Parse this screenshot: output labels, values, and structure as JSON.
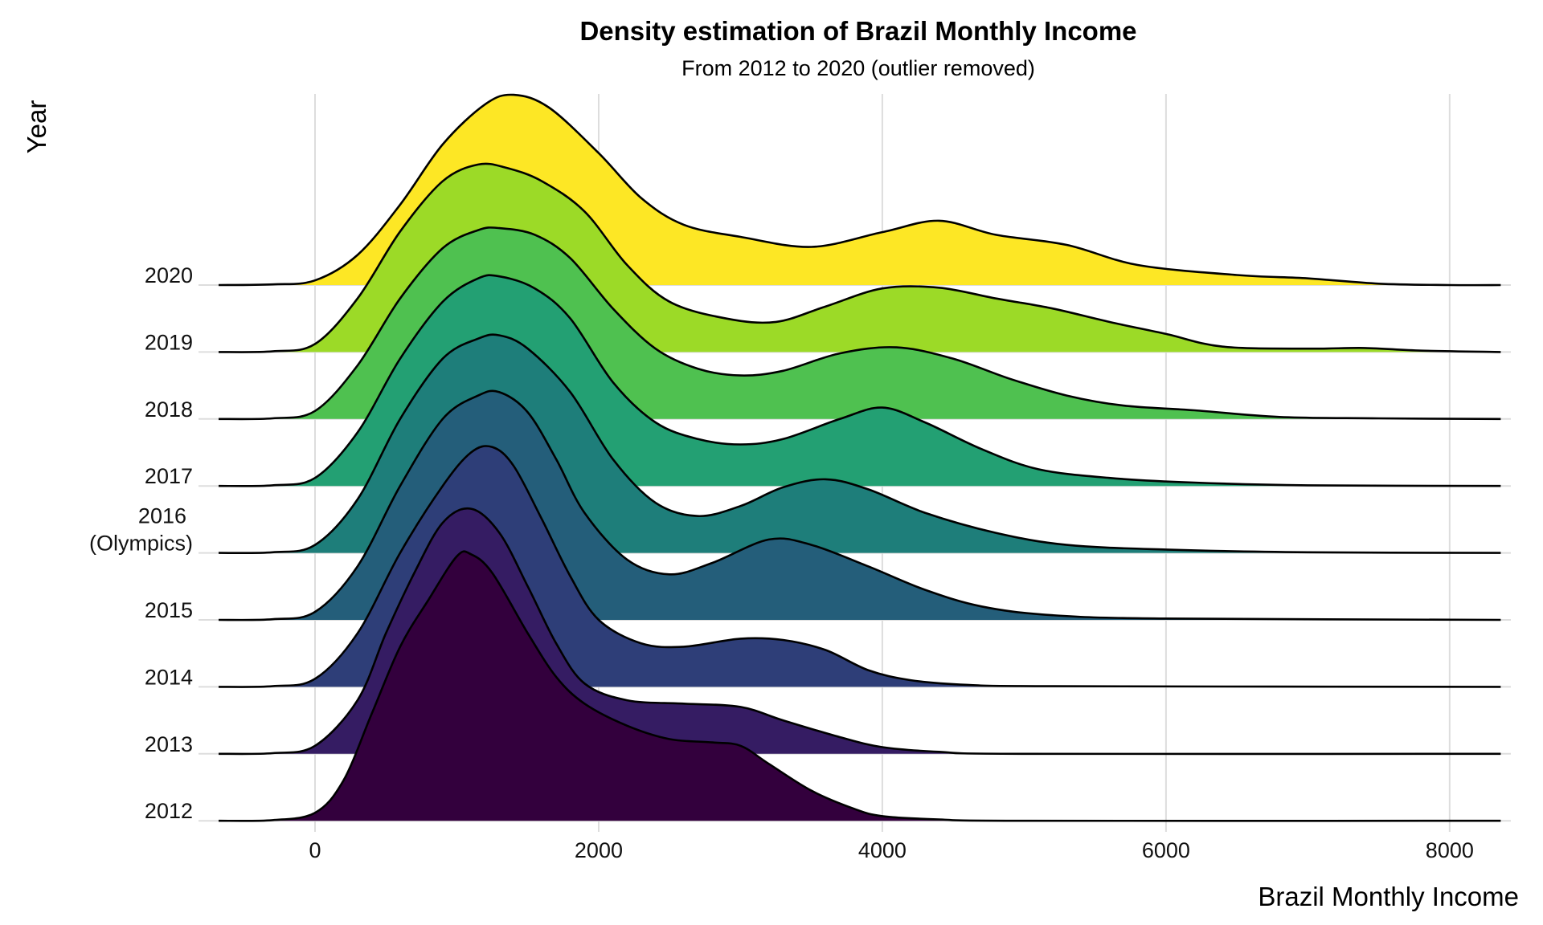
{
  "chart_data": {
    "type": "ridgeline",
    "title": "Density estimation of Brazil Monthly Income",
    "subtitle": "From 2012 to 2020 (outlier removed)",
    "xlabel": "Brazil Monthly Income",
    "ylabel": "Year",
    "xlim": [
      -680,
      8360
    ],
    "x_ticks": [
      0,
      2000,
      4000,
      6000,
      8000
    ],
    "x_tick_labels": [
      "0",
      "2000",
      "4000",
      "6000",
      "8000"
    ],
    "grid": true,
    "density_units": "relative height, 1 = spacing between adjacent year baselines",
    "series": [
      {
        "name": "2012",
        "label": "2012",
        "color": "#33003D",
        "points": [
          [
            -680,
            0
          ],
          [
            -300,
            0.01
          ],
          [
            0,
            0.12
          ],
          [
            200,
            0.6
          ],
          [
            400,
            1.6
          ],
          [
            600,
            2.6
          ],
          [
            800,
            3.3
          ],
          [
            1000,
            3.95
          ],
          [
            1100,
            3.98
          ],
          [
            1250,
            3.7
          ],
          [
            1500,
            2.8
          ],
          [
            1700,
            2.15
          ],
          [
            1900,
            1.75
          ],
          [
            2200,
            1.42
          ],
          [
            2500,
            1.22
          ],
          [
            2800,
            1.17
          ],
          [
            3000,
            1.12
          ],
          [
            3200,
            0.85
          ],
          [
            3500,
            0.45
          ],
          [
            3800,
            0.18
          ],
          [
            4000,
            0.07
          ],
          [
            4400,
            0.02
          ],
          [
            5000,
            0
          ],
          [
            8360,
            0
          ]
        ]
      },
      {
        "name": "2013",
        "label": "2013",
        "color": "#351C63",
        "points": [
          [
            -680,
            0
          ],
          [
            -300,
            0.01
          ],
          [
            0,
            0.12
          ],
          [
            300,
            0.8
          ],
          [
            500,
            1.8
          ],
          [
            700,
            2.7
          ],
          [
            900,
            3.45
          ],
          [
            1100,
            3.66
          ],
          [
            1300,
            3.3
          ],
          [
            1500,
            2.5
          ],
          [
            1700,
            1.65
          ],
          [
            1900,
            1.05
          ],
          [
            2200,
            0.8
          ],
          [
            2600,
            0.75
          ],
          [
            3000,
            0.7
          ],
          [
            3300,
            0.5
          ],
          [
            3700,
            0.25
          ],
          [
            4000,
            0.1
          ],
          [
            4400,
            0.03
          ],
          [
            5000,
            0
          ],
          [
            8360,
            0
          ]
        ]
      },
      {
        "name": "2014",
        "label": "2014",
        "color": "#2E3E78",
        "points": [
          [
            -680,
            0
          ],
          [
            -300,
            0.01
          ],
          [
            0,
            0.12
          ],
          [
            300,
            0.8
          ],
          [
            600,
            2.0
          ],
          [
            900,
            3.0
          ],
          [
            1100,
            3.5
          ],
          [
            1250,
            3.58
          ],
          [
            1400,
            3.3
          ],
          [
            1600,
            2.5
          ],
          [
            1800,
            1.65
          ],
          [
            2000,
            1.0
          ],
          [
            2300,
            0.65
          ],
          [
            2600,
            0.6
          ],
          [
            3000,
            0.72
          ],
          [
            3300,
            0.7
          ],
          [
            3600,
            0.55
          ],
          [
            3900,
            0.25
          ],
          [
            4200,
            0.1
          ],
          [
            4600,
            0.03
          ],
          [
            5200,
            0.01
          ],
          [
            8360,
            0
          ]
        ]
      },
      {
        "name": "2015",
        "label": "2015",
        "color": "#245E7A",
        "points": [
          [
            -680,
            0
          ],
          [
            -300,
            0.01
          ],
          [
            0,
            0.12
          ],
          [
            300,
            0.8
          ],
          [
            600,
            2.0
          ],
          [
            900,
            3.0
          ],
          [
            1150,
            3.35
          ],
          [
            1300,
            3.4
          ],
          [
            1500,
            3.1
          ],
          [
            1700,
            2.4
          ],
          [
            1900,
            1.6
          ],
          [
            2200,
            0.9
          ],
          [
            2500,
            0.68
          ],
          [
            2800,
            0.85
          ],
          [
            3200,
            1.2
          ],
          [
            3500,
            1.12
          ],
          [
            3900,
            0.8
          ],
          [
            4300,
            0.45
          ],
          [
            4700,
            0.2
          ],
          [
            5200,
            0.07
          ],
          [
            6000,
            0.02
          ],
          [
            8360,
            0
          ]
        ]
      },
      {
        "name": "2016",
        "label": "2016\n(Olympics)",
        "color": "#1E7E7A",
        "points": [
          [
            -680,
            0
          ],
          [
            -300,
            0.01
          ],
          [
            0,
            0.12
          ],
          [
            300,
            0.8
          ],
          [
            600,
            2.0
          ],
          [
            900,
            2.9
          ],
          [
            1150,
            3.2
          ],
          [
            1300,
            3.25
          ],
          [
            1500,
            3.05
          ],
          [
            1800,
            2.4
          ],
          [
            2100,
            1.4
          ],
          [
            2400,
            0.75
          ],
          [
            2700,
            0.55
          ],
          [
            3000,
            0.7
          ],
          [
            3300,
            0.98
          ],
          [
            3600,
            1.1
          ],
          [
            3900,
            0.95
          ],
          [
            4300,
            0.6
          ],
          [
            4800,
            0.3
          ],
          [
            5300,
            0.12
          ],
          [
            6000,
            0.05
          ],
          [
            7000,
            0.01
          ],
          [
            8360,
            0
          ]
        ]
      },
      {
        "name": "2017",
        "label": "2017",
        "color": "#23A073",
        "points": [
          [
            -680,
            0
          ],
          [
            -300,
            0.01
          ],
          [
            0,
            0.12
          ],
          [
            300,
            0.8
          ],
          [
            600,
            1.9
          ],
          [
            900,
            2.75
          ],
          [
            1150,
            3.1
          ],
          [
            1300,
            3.13
          ],
          [
            1550,
            2.95
          ],
          [
            1800,
            2.5
          ],
          [
            2100,
            1.55
          ],
          [
            2400,
            0.95
          ],
          [
            2700,
            0.7
          ],
          [
            3000,
            0.62
          ],
          [
            3300,
            0.7
          ],
          [
            3700,
            1.0
          ],
          [
            4000,
            1.17
          ],
          [
            4300,
            0.95
          ],
          [
            4700,
            0.55
          ],
          [
            5100,
            0.25
          ],
          [
            5600,
            0.12
          ],
          [
            6200,
            0.05
          ],
          [
            7000,
            0.01
          ],
          [
            8360,
            0
          ]
        ]
      },
      {
        "name": "2018",
        "label": "2018",
        "color": "#4FC150",
        "points": [
          [
            -680,
            0
          ],
          [
            -300,
            0.01
          ],
          [
            0,
            0.12
          ],
          [
            300,
            0.8
          ],
          [
            600,
            1.8
          ],
          [
            900,
            2.55
          ],
          [
            1150,
            2.82
          ],
          [
            1300,
            2.85
          ],
          [
            1550,
            2.75
          ],
          [
            1800,
            2.4
          ],
          [
            2100,
            1.65
          ],
          [
            2400,
            1.05
          ],
          [
            2700,
            0.75
          ],
          [
            3000,
            0.65
          ],
          [
            3300,
            0.72
          ],
          [
            3700,
            0.98
          ],
          [
            4100,
            1.07
          ],
          [
            4500,
            0.9
          ],
          [
            4900,
            0.6
          ],
          [
            5300,
            0.35
          ],
          [
            5700,
            0.2
          ],
          [
            6200,
            0.13
          ],
          [
            6800,
            0.03
          ],
          [
            7500,
            0.01
          ],
          [
            8360,
            0
          ]
        ]
      },
      {
        "name": "2019",
        "label": "2019",
        "color": "#9CDA27",
        "points": [
          [
            -680,
            0
          ],
          [
            -300,
            0.01
          ],
          [
            0,
            0.12
          ],
          [
            300,
            0.8
          ],
          [
            600,
            1.8
          ],
          [
            900,
            2.55
          ],
          [
            1150,
            2.8
          ],
          [
            1350,
            2.75
          ],
          [
            1600,
            2.55
          ],
          [
            1900,
            2.1
          ],
          [
            2200,
            1.3
          ],
          [
            2500,
            0.75
          ],
          [
            2900,
            0.5
          ],
          [
            3250,
            0.45
          ],
          [
            3600,
            0.68
          ],
          [
            4000,
            0.95
          ],
          [
            4400,
            0.96
          ],
          [
            4800,
            0.8
          ],
          [
            5200,
            0.65
          ],
          [
            5600,
            0.45
          ],
          [
            6000,
            0.27
          ],
          [
            6400,
            0.08
          ],
          [
            7000,
            0.05
          ],
          [
            7400,
            0.06
          ],
          [
            7800,
            0.02
          ],
          [
            8360,
            0
          ]
        ]
      },
      {
        "name": "2020",
        "label": "2020",
        "color": "#FDE725",
        "points": [
          [
            -680,
            0
          ],
          [
            -300,
            0.01
          ],
          [
            0,
            0.07
          ],
          [
            300,
            0.45
          ],
          [
            600,
            1.2
          ],
          [
            900,
            2.1
          ],
          [
            1200,
            2.7
          ],
          [
            1400,
            2.84
          ],
          [
            1650,
            2.65
          ],
          [
            2000,
            1.97
          ],
          [
            2300,
            1.3
          ],
          [
            2600,
            0.9
          ],
          [
            3000,
            0.72
          ],
          [
            3500,
            0.57
          ],
          [
            4000,
            0.79
          ],
          [
            4400,
            0.96
          ],
          [
            4800,
            0.75
          ],
          [
            5300,
            0.6
          ],
          [
            5800,
            0.3
          ],
          [
            6500,
            0.15
          ],
          [
            7000,
            0.1
          ],
          [
            7500,
            0.02
          ],
          [
            8000,
            0
          ],
          [
            8360,
            0
          ]
        ]
      }
    ]
  }
}
